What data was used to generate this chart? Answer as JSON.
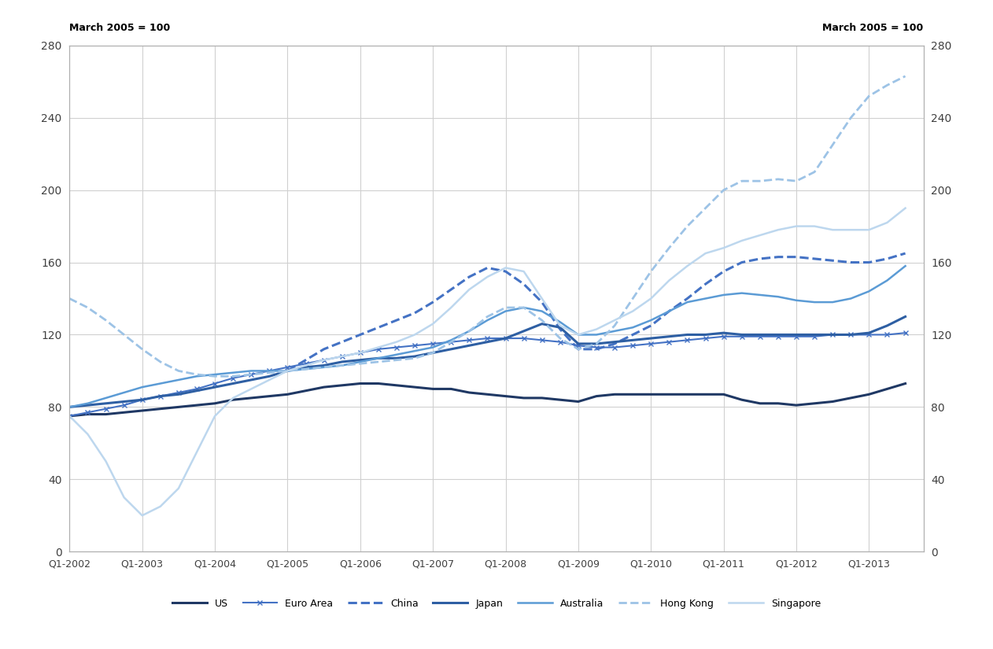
{
  "ylabel_left": "March 2005 = 100",
  "ylabel_right": "March 2005 = 100",
  "ylim": [
    0,
    280
  ],
  "yticks": [
    0,
    40,
    80,
    120,
    160,
    200,
    240,
    280
  ],
  "xlim_start": 2002.0,
  "xlim_end": 2013.75,
  "xtick_labels": [
    "Q1-2002",
    "Q1-2003",
    "Q1-2004",
    "Q1-2005",
    "Q1-2006",
    "Q1-2007",
    "Q1-2008",
    "Q1-2009",
    "Q1-2010",
    "Q1-2011",
    "Q1-2012",
    "Q1-2013"
  ],
  "xtick_positions": [
    2002.0,
    2003.0,
    2004.0,
    2005.0,
    2006.0,
    2007.0,
    2008.0,
    2009.0,
    2010.0,
    2011.0,
    2012.0,
    2013.0
  ],
  "series": {
    "US": {
      "color": "#1F3864",
      "linestyle": "solid",
      "linewidth": 2.2,
      "marker": null,
      "data": {
        "x": [
          2002.0,
          2002.25,
          2002.5,
          2002.75,
          2003.0,
          2003.25,
          2003.5,
          2003.75,
          2004.0,
          2004.25,
          2004.5,
          2004.75,
          2005.0,
          2005.25,
          2005.5,
          2005.75,
          2006.0,
          2006.25,
          2006.5,
          2006.75,
          2007.0,
          2007.25,
          2007.5,
          2007.75,
          2008.0,
          2008.25,
          2008.5,
          2008.75,
          2009.0,
          2009.25,
          2009.5,
          2009.75,
          2010.0,
          2010.25,
          2010.5,
          2010.75,
          2011.0,
          2011.25,
          2011.5,
          2011.75,
          2012.0,
          2012.25,
          2012.5,
          2012.75,
          2013.0,
          2013.25,
          2013.5
        ],
        "y": [
          75,
          76,
          76,
          77,
          78,
          79,
          80,
          81,
          82,
          84,
          85,
          86,
          87,
          89,
          91,
          92,
          93,
          93,
          92,
          91,
          90,
          90,
          88,
          87,
          86,
          85,
          85,
          84,
          83,
          86,
          87,
          87,
          87,
          87,
          87,
          87,
          87,
          84,
          82,
          82,
          81,
          82,
          83,
          85,
          87,
          90,
          93
        ]
      }
    },
    "Euro Area": {
      "color": "#4472C4",
      "linestyle": "solid",
      "linewidth": 1.5,
      "marker": "x",
      "markersize": 5,
      "data": {
        "x": [
          2002.0,
          2002.25,
          2002.5,
          2002.75,
          2003.0,
          2003.25,
          2003.5,
          2003.75,
          2004.0,
          2004.25,
          2004.5,
          2004.75,
          2005.0,
          2005.25,
          2005.5,
          2005.75,
          2006.0,
          2006.25,
          2006.5,
          2006.75,
          2007.0,
          2007.25,
          2007.5,
          2007.75,
          2008.0,
          2008.25,
          2008.5,
          2008.75,
          2009.0,
          2009.25,
          2009.5,
          2009.75,
          2010.0,
          2010.25,
          2010.5,
          2010.75,
          2011.0,
          2011.25,
          2011.5,
          2011.75,
          2012.0,
          2012.25,
          2012.5,
          2012.75,
          2013.0,
          2013.25,
          2013.5
        ],
        "y": [
          75,
          77,
          79,
          81,
          84,
          86,
          88,
          90,
          93,
          96,
          98,
          100,
          102,
          104,
          106,
          108,
          110,
          112,
          113,
          114,
          115,
          116,
          117,
          118,
          118,
          118,
          117,
          116,
          114,
          113,
          113,
          114,
          115,
          116,
          117,
          118,
          119,
          119,
          119,
          119,
          119,
          119,
          120,
          120,
          120,
          120,
          121
        ]
      }
    },
    "China": {
      "color": "#4472C4",
      "linestyle": "dashed",
      "linewidth": 2.2,
      "marker": null,
      "data": {
        "x": [
          2005.0,
          2005.25,
          2005.5,
          2005.75,
          2006.0,
          2006.25,
          2006.5,
          2006.75,
          2007.0,
          2007.25,
          2007.5,
          2007.75,
          2008.0,
          2008.25,
          2008.5,
          2008.75,
          2009.0,
          2009.25,
          2009.5,
          2009.75,
          2010.0,
          2010.25,
          2010.5,
          2010.75,
          2011.0,
          2011.25,
          2011.5,
          2011.75,
          2012.0,
          2012.25,
          2012.5,
          2012.75,
          2013.0,
          2013.25,
          2013.5
        ],
        "y": [
          100,
          106,
          112,
          116,
          120,
          124,
          128,
          132,
          138,
          145,
          152,
          157,
          155,
          148,
          138,
          123,
          112,
          112,
          115,
          120,
          125,
          133,
          140,
          148,
          155,
          160,
          162,
          163,
          163,
          162,
          161,
          160,
          160,
          162,
          165
        ]
      }
    },
    "Japan": {
      "color": "#2E5FA3",
      "linestyle": "solid",
      "linewidth": 2.2,
      "marker": null,
      "data": {
        "x": [
          2002.0,
          2002.25,
          2002.5,
          2002.75,
          2003.0,
          2003.25,
          2003.5,
          2003.75,
          2004.0,
          2004.25,
          2004.5,
          2004.75,
          2005.0,
          2005.25,
          2005.5,
          2005.75,
          2006.0,
          2006.25,
          2006.5,
          2006.75,
          2007.0,
          2007.25,
          2007.5,
          2007.75,
          2008.0,
          2008.25,
          2008.5,
          2008.75,
          2009.0,
          2009.25,
          2009.5,
          2009.75,
          2010.0,
          2010.25,
          2010.5,
          2010.75,
          2011.0,
          2011.25,
          2011.5,
          2011.75,
          2012.0,
          2012.25,
          2012.5,
          2012.75,
          2013.0,
          2013.25,
          2013.5
        ],
        "y": [
          80,
          81,
          82,
          83,
          84,
          86,
          87,
          89,
          91,
          93,
          95,
          97,
          100,
          102,
          103,
          105,
          106,
          107,
          107,
          108,
          110,
          112,
          114,
          116,
          118,
          122,
          126,
          124,
          115,
          115,
          116,
          117,
          118,
          119,
          120,
          120,
          121,
          120,
          120,
          120,
          120,
          120,
          120,
          120,
          121,
          125,
          130
        ]
      }
    },
    "Australia": {
      "color": "#5B9BD5",
      "linestyle": "solid",
      "linewidth": 1.8,
      "marker": null,
      "data": {
        "x": [
          2002.0,
          2002.25,
          2002.5,
          2002.75,
          2003.0,
          2003.25,
          2003.5,
          2003.75,
          2004.0,
          2004.25,
          2004.5,
          2004.75,
          2005.0,
          2005.25,
          2005.5,
          2005.75,
          2006.0,
          2006.25,
          2006.5,
          2006.75,
          2007.0,
          2007.25,
          2007.5,
          2007.75,
          2008.0,
          2008.25,
          2008.5,
          2008.75,
          2009.0,
          2009.25,
          2009.5,
          2009.75,
          2010.0,
          2010.25,
          2010.5,
          2010.75,
          2011.0,
          2011.25,
          2011.5,
          2011.75,
          2012.0,
          2012.25,
          2012.5,
          2012.75,
          2013.0,
          2013.25,
          2013.5
        ],
        "y": [
          80,
          82,
          85,
          88,
          91,
          93,
          95,
          97,
          98,
          99,
          100,
          100,
          100,
          101,
          102,
          103,
          105,
          107,
          109,
          111,
          113,
          117,
          122,
          128,
          133,
          135,
          133,
          127,
          120,
          120,
          122,
          124,
          128,
          133,
          138,
          140,
          142,
          143,
          142,
          141,
          139,
          138,
          138,
          140,
          144,
          150,
          158
        ]
      }
    },
    "Hong Kong": {
      "color": "#9DC3E6",
      "linestyle": "dashed",
      "linewidth": 2.0,
      "marker": null,
      "data": {
        "x": [
          2002.0,
          2002.25,
          2002.5,
          2002.75,
          2003.0,
          2003.25,
          2003.5,
          2003.75,
          2004.0,
          2004.25,
          2004.5,
          2004.75,
          2005.0,
          2005.25,
          2005.5,
          2005.75,
          2006.0,
          2006.25,
          2006.5,
          2006.75,
          2007.0,
          2007.25,
          2007.5,
          2007.75,
          2008.0,
          2008.25,
          2008.5,
          2008.75,
          2009.0,
          2009.25,
          2009.5,
          2009.75,
          2010.0,
          2010.25,
          2010.5,
          2010.75,
          2011.0,
          2011.25,
          2011.5,
          2011.75,
          2012.0,
          2012.25,
          2012.5,
          2012.75,
          2013.0,
          2013.25,
          2013.5
        ],
        "y": [
          140,
          135,
          128,
          120,
          112,
          105,
          100,
          98,
          97,
          97,
          98,
          99,
          100,
          101,
          102,
          103,
          104,
          105,
          106,
          107,
          110,
          116,
          122,
          130,
          135,
          135,
          128,
          118,
          112,
          115,
          125,
          140,
          155,
          168,
          180,
          190,
          200,
          205,
          205,
          206,
          205,
          210,
          225,
          240,
          252,
          258,
          263
        ]
      }
    },
    "Singapore": {
      "color": "#BDD7EE",
      "linestyle": "solid",
      "linewidth": 1.8,
      "marker": null,
      "data": {
        "x": [
          2002.0,
          2002.25,
          2002.5,
          2002.75,
          2003.0,
          2003.25,
          2003.5,
          2003.75,
          2004.0,
          2004.25,
          2004.5,
          2004.75,
          2005.0,
          2005.25,
          2005.5,
          2005.75,
          2006.0,
          2006.25,
          2006.5,
          2006.75,
          2007.0,
          2007.25,
          2007.5,
          2007.75,
          2008.0,
          2008.25,
          2008.5,
          2008.75,
          2009.0,
          2009.25,
          2009.5,
          2009.75,
          2010.0,
          2010.25,
          2010.5,
          2010.75,
          2011.0,
          2011.25,
          2011.5,
          2011.75,
          2012.0,
          2012.25,
          2012.5,
          2012.75,
          2013.0,
          2013.25,
          2013.5
        ],
        "y": [
          75,
          65,
          50,
          30,
          20,
          25,
          35,
          55,
          75,
          85,
          90,
          95,
          100,
          103,
          106,
          108,
          110,
          113,
          116,
          120,
          126,
          135,
          145,
          152,
          157,
          155,
          140,
          125,
          120,
          123,
          128,
          133,
          140,
          150,
          158,
          165,
          168,
          172,
          175,
          178,
          180,
          180,
          178,
          178,
          178,
          182,
          190
        ]
      }
    }
  },
  "background_color": "#FFFFFF",
  "grid_color": "#D0D0D0",
  "font_size_tick": 9,
  "font_size_label": 9
}
